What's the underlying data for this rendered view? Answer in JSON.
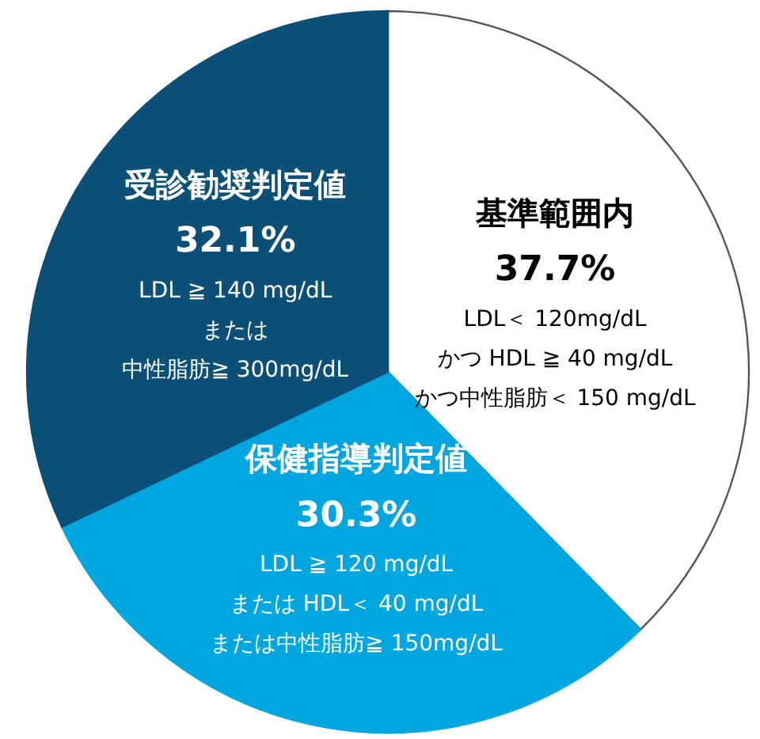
{
  "chart_data": {
    "type": "pie",
    "categories": [
      "基準範囲内",
      "保健指導判定値",
      "受診勧奨判定値"
    ],
    "values": [
      37.7,
      30.3,
      32.1
    ],
    "value_labels": [
      "37.7%",
      "30.3%",
      "32.1%"
    ],
    "colors": [
      "#ffffff",
      "#00a6e0",
      "#0c5078"
    ],
    "annotations": [
      "LDL＜ 120mg/dL",
      "かつ HDL ≧ 40 mg/dL",
      "かつ中性脂肪＜ 150 mg/dL",
      "LDL ≧ 120 mg/dL",
      "または HDL＜ 40 mg/dL",
      "または中性脂肪≧ 150mg/dL",
      "LDL ≧ 140 mg/dL",
      "または",
      "中性脂肪≧ 300mg/dL"
    ]
  }
}
